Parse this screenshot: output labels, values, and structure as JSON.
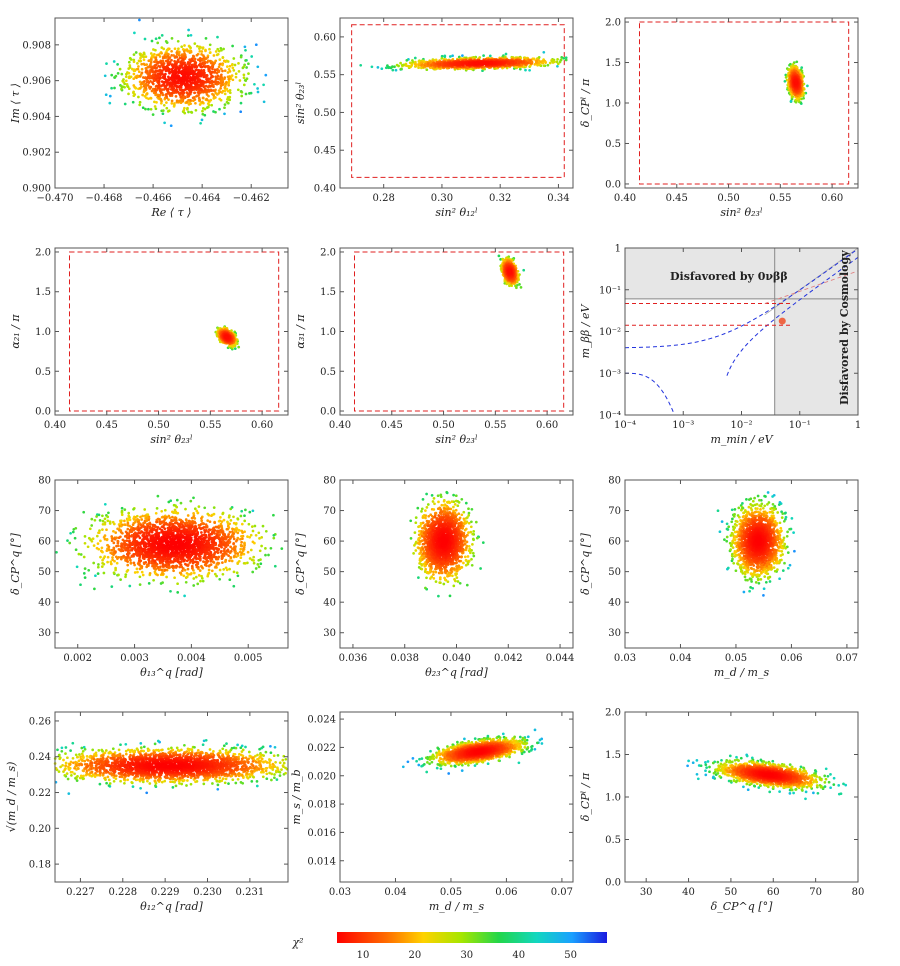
{
  "chart_data": [
    {
      "id": "p1",
      "type": "scatter",
      "xlabel": "Re ⟨ τ ⟩",
      "ylabel": "Im ⟨ τ ⟩",
      "xlim": [
        -0.47,
        -0.4605
      ],
      "ylim": [
        0.9,
        0.9095
      ],
      "xticks": [
        "−0.470",
        "−0.468",
        "−0.466",
        "−0.464",
        "−0.462"
      ],
      "xtickvals": [
        -0.47,
        -0.468,
        -0.466,
        -0.464,
        -0.462
      ],
      "yticks": [
        "0.900",
        "0.902",
        "0.904",
        "0.906",
        "0.908"
      ],
      "ytickvals": [
        0.9,
        0.902,
        0.904,
        0.906,
        0.908
      ],
      "cloud": {
        "cx": -0.4648,
        "cy": 0.9062,
        "sx": 0.0011,
        "sy": 0.00085,
        "tilt": 0.0,
        "count": 1400,
        "seed": 11,
        "chi_min": 6,
        "chi_max": 52
      }
    },
    {
      "id": "p2",
      "type": "scatter",
      "xlabel": "sin² θ₁₂ˡ",
      "ylabel": "sin² θ₂₃ˡ",
      "xlim": [
        0.265,
        0.345
      ],
      "ylim": [
        0.4,
        0.625
      ],
      "xticks": [
        "0.28",
        "0.30",
        "0.32",
        "0.34"
      ],
      "xtickvals": [
        0.28,
        0.3,
        0.32,
        0.34
      ],
      "yticks": [
        "0.40",
        "0.45",
        "0.50",
        "0.55",
        "0.60"
      ],
      "ytickvals": [
        0.4,
        0.45,
        0.5,
        0.55,
        0.6
      ],
      "range_box": {
        "x": [
          0.269,
          0.342
        ],
        "y": [
          0.414,
          0.616
        ]
      },
      "cloud": {
        "cx": 0.313,
        "cy": 0.565,
        "sx": 0.012,
        "sy": 0.0035,
        "tilt": 0.09,
        "count": 1100,
        "seed": 21,
        "chi_min": 6,
        "chi_max": 50
      }
    },
    {
      "id": "p3",
      "type": "scatter",
      "xlabel": "sin² θ₂₃ˡ",
      "ylabel": "δ_CPˡ / π",
      "xlim": [
        0.4,
        0.625
      ],
      "ylim": [
        -0.05,
        2.05
      ],
      "xticks": [
        "0.40",
        "0.45",
        "0.50",
        "0.55",
        "0.60"
      ],
      "xtickvals": [
        0.4,
        0.45,
        0.5,
        0.55,
        0.6
      ],
      "yticks": [
        "0.0",
        "0.5",
        "1.0",
        "1.5",
        "2.0"
      ],
      "ytickvals": [
        0.0,
        0.5,
        1.0,
        1.5,
        2.0
      ],
      "range_box": {
        "x": [
          0.414,
          0.616
        ],
        "y": [
          0.0,
          2.0
        ]
      },
      "cloud": {
        "cx": 0.565,
        "cy": 1.25,
        "sx": 0.0035,
        "sy": 0.09,
        "tilt": -6.0,
        "count": 700,
        "seed": 31,
        "chi_min": 6,
        "chi_max": 45
      }
    },
    {
      "id": "p4",
      "type": "scatter",
      "xlabel": "sin² θ₂₃ˡ",
      "ylabel": "α₂₁ / π",
      "xlim": [
        0.4,
        0.625
      ],
      "ylim": [
        -0.05,
        2.05
      ],
      "xticks": [
        "0.40",
        "0.45",
        "0.50",
        "0.55",
        "0.60"
      ],
      "xtickvals": [
        0.4,
        0.45,
        0.5,
        0.55,
        0.6
      ],
      "yticks": [
        "0.0",
        "0.5",
        "1.0",
        "1.5",
        "2.0"
      ],
      "ytickvals": [
        0.0,
        0.5,
        1.0,
        1.5,
        2.0
      ],
      "range_box": {
        "x": [
          0.414,
          0.616
        ],
        "y": [
          0.0,
          2.0
        ]
      },
      "cloud": {
        "cx": 0.566,
        "cy": 0.93,
        "sx": 0.004,
        "sy": 0.045,
        "tilt": -5.0,
        "count": 600,
        "seed": 41,
        "chi_min": 6,
        "chi_max": 40
      }
    },
    {
      "id": "p5",
      "type": "scatter",
      "xlabel": "sin² θ₂₃ˡ",
      "ylabel": "α₃₁ / π",
      "xlim": [
        0.4,
        0.625
      ],
      "ylim": [
        -0.05,
        2.05
      ],
      "xticks": [
        "0.40",
        "0.45",
        "0.50",
        "0.55",
        "0.60"
      ],
      "xtickvals": [
        0.4,
        0.45,
        0.5,
        0.55,
        0.6
      ],
      "yticks": [
        "0.0",
        "0.5",
        "1.0",
        "1.5",
        "2.0"
      ],
      "ytickvals": [
        0.0,
        0.5,
        1.0,
        1.5,
        2.0
      ],
      "range_box": {
        "x": [
          0.414,
          0.616
        ],
        "y": [
          0.0,
          2.0
        ]
      },
      "cloud": {
        "cx": 0.564,
        "cy": 1.75,
        "sx": 0.0035,
        "sy": 0.07,
        "tilt": -6.0,
        "count": 650,
        "seed": 51,
        "chi_min": 6,
        "chi_max": 40
      }
    },
    {
      "id": "p6",
      "type": "line",
      "xlabel": "m_min / eV",
      "ylabel": "m_ββ / eV",
      "xscale": "log",
      "yscale": "log",
      "xlim": [
        -4,
        0
      ],
      "ylim": [
        -4,
        0
      ],
      "xticks": [
        "10⁻⁴",
        "10⁻³",
        "10⁻²",
        "10⁻¹",
        "1"
      ],
      "xtickvals": [
        -4,
        -3,
        -2,
        -1,
        0
      ],
      "yticks": [
        "10⁻⁴",
        "10⁻³",
        "10⁻²",
        "10⁻¹",
        "1"
      ],
      "ytickvals": [
        -4,
        -3,
        -2,
        -1,
        0
      ],
      "annotations": [
        "Disfavored by 0νββ",
        "Disfavored by Cosmology"
      ],
      "excluded_mbb_above_log": -1.22,
      "excluded_mmin_right_log": -1.43,
      "ref_lines_log": [
        -1.33,
        -1.85
      ],
      "point": {
        "mmin_log": -1.3,
        "mbb_log": -1.75
      }
    },
    {
      "id": "p7",
      "type": "scatter",
      "xlabel": "θ₁₃^q [rad]",
      "ylabel": "δ_CP^q [°]",
      "xlim": [
        0.0016,
        0.0057
      ],
      "ylim": [
        25,
        80
      ],
      "xticks": [
        "0.002",
        "0.003",
        "0.004",
        "0.005"
      ],
      "xtickvals": [
        0.002,
        0.003,
        0.004,
        0.005
      ],
      "yticks": [
        "30",
        "40",
        "50",
        "60",
        "70",
        "80"
      ],
      "ytickvals": [
        30,
        40,
        50,
        60,
        70,
        80
      ],
      "cloud": {
        "cx": 0.0037,
        "cy": 59,
        "sx": 0.00065,
        "sy": 5.0,
        "tilt": 0,
        "count": 2200,
        "seed": 71,
        "chi_min": 5,
        "chi_max": 45
      }
    },
    {
      "id": "p8",
      "type": "scatter",
      "xlabel": "θ₂₃^q [rad]",
      "ylabel": "δ_CP^q [°]",
      "xlim": [
        0.0355,
        0.0445
      ],
      "ylim": [
        25,
        80
      ],
      "xticks": [
        "0.036",
        "0.038",
        "0.040",
        "0.042",
        "0.044"
      ],
      "xtickvals": [
        0.036,
        0.038,
        0.04,
        0.042,
        0.044
      ],
      "yticks": [
        "30",
        "40",
        "50",
        "60",
        "70",
        "80"
      ],
      "ytickvals": [
        30,
        40,
        50,
        60,
        70,
        80
      ],
      "cloud": {
        "cx": 0.0395,
        "cy": 60,
        "sx": 0.00045,
        "sy": 5.5,
        "tilt": 0,
        "count": 1600,
        "seed": 81,
        "chi_min": 5,
        "chi_max": 40
      }
    },
    {
      "id": "p9",
      "type": "scatter",
      "xlabel": "m_d / m_s",
      "ylabel": "δ_CP^q [°]",
      "xlim": [
        0.03,
        0.072
      ],
      "ylim": [
        25,
        80
      ],
      "xticks": [
        "0.03",
        "0.04",
        "0.05",
        "0.06",
        "0.07"
      ],
      "xtickvals": [
        0.03,
        0.04,
        0.05,
        0.06,
        0.07
      ],
      "yticks": [
        "30",
        "40",
        "50",
        "60",
        "70",
        "80"
      ],
      "ytickvals": [
        30,
        40,
        50,
        60,
        70,
        80
      ],
      "cloud": {
        "cx": 0.054,
        "cy": 60,
        "sx": 0.0022,
        "sy": 5.5,
        "tilt": 0,
        "count": 1600,
        "seed": 91,
        "chi_min": 5,
        "chi_max": 52
      }
    },
    {
      "id": "p10",
      "type": "scatter",
      "xlabel": "θ₁₂^q [rad]",
      "ylabel": "√(m_d / m_s)",
      "xlim": [
        0.2264,
        0.2319
      ],
      "ylim": [
        0.17,
        0.265
      ],
      "xticks": [
        "0.227",
        "0.228",
        "0.229",
        "0.230",
        "0.231"
      ],
      "xtickvals": [
        0.227,
        0.228,
        0.229,
        0.23,
        0.231
      ],
      "yticks": [
        "0.18",
        "0.20",
        "0.22",
        "0.24",
        "0.26"
      ],
      "ytickvals": [
        0.18,
        0.2,
        0.22,
        0.24,
        0.26
      ],
      "cloud": {
        "cx": 0.2291,
        "cy": 0.235,
        "sx": 0.0013,
        "sy": 0.0045,
        "tilt": 0,
        "count": 2200,
        "seed": 101,
        "chi_min": 5,
        "chi_max": 52
      }
    },
    {
      "id": "p11",
      "type": "scatter",
      "xlabel": "m_d / m_s",
      "ylabel": "m_s / m_b",
      "xlim": [
        0.03,
        0.072
      ],
      "ylim": [
        0.0125,
        0.0245
      ],
      "xticks": [
        "0.03",
        "0.04",
        "0.05",
        "0.06",
        "0.07"
      ],
      "xtickvals": [
        0.03,
        0.04,
        0.05,
        0.06,
        0.07
      ],
      "yticks": [
        "0.014",
        "0.016",
        "0.018",
        "0.020",
        "0.022",
        "0.024"
      ],
      "ytickvals": [
        0.014,
        0.016,
        0.018,
        0.02,
        0.022,
        0.024
      ],
      "cloud": {
        "cx": 0.055,
        "cy": 0.0217,
        "sx": 0.0038,
        "sy": 0.00035,
        "tilt": 0.055,
        "count": 1500,
        "seed": 111,
        "chi_min": 5,
        "chi_max": 52
      }
    },
    {
      "id": "p12",
      "type": "scatter",
      "xlabel": "δ_CP^q [°]",
      "ylabel": "δ_CPˡ / π",
      "xlim": [
        25,
        80
      ],
      "ylim": [
        0.0,
        2.0
      ],
      "xticks": [
        "30",
        "40",
        "50",
        "60",
        "70",
        "80"
      ],
      "xtickvals": [
        30,
        40,
        50,
        60,
        70,
        80
      ],
      "yticks": [
        "0.0",
        "0.5",
        "1.0",
        "1.5",
        "2.0"
      ],
      "ytickvals": [
        0.0,
        0.5,
        1.0,
        1.5,
        2.0
      ],
      "cloud": {
        "cx": 59,
        "cy": 1.26,
        "sx": 5.5,
        "sy": 0.06,
        "tilt": -0.006,
        "count": 1500,
        "seed": 121,
        "chi_min": 5,
        "chi_max": 50
      }
    }
  ],
  "colorbar": {
    "label": "χ²",
    "ticks": [
      "10",
      "20",
      "30",
      "40",
      "50"
    ],
    "tickvals": [
      10,
      20,
      30,
      40,
      50
    ],
    "range": [
      5,
      57
    ]
  },
  "colors": {
    "frame": "#555555",
    "range_box": "#e02020",
    "low_chi": "#ff2a00",
    "high_chi": "#1a1aff",
    "shade": "#e6e6e6"
  }
}
